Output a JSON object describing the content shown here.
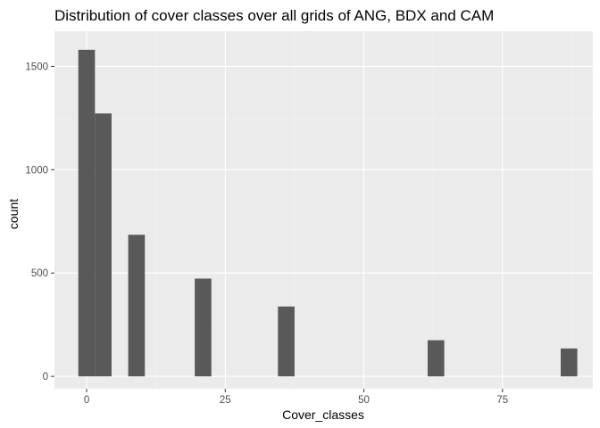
{
  "chart_data": {
    "type": "bar",
    "title": "Distribution of cover classes over all grids of ANG, BDX and CAM",
    "xlabel": "Cover_classes",
    "ylabel": "count",
    "xlim": [
      -5.8,
      91.3
    ],
    "ylim": [
      -60,
      1670
    ],
    "x_ticks": [
      0,
      25,
      50,
      75
    ],
    "x_tick_labels": [
      "0",
      "25",
      "50",
      "75"
    ],
    "y_ticks": [
      0,
      500,
      1000,
      1500
    ],
    "y_tick_labels": [
      "0",
      "500",
      "1000",
      "1500"
    ],
    "bin_width": 3,
    "bins": [
      {
        "x": 0,
        "count": 1580
      },
      {
        "x": 3,
        "count": 1272
      },
      {
        "x": 9,
        "count": 685
      },
      {
        "x": 21,
        "count": 473
      },
      {
        "x": 36,
        "count": 338
      },
      {
        "x": 63,
        "count": 175
      },
      {
        "x": 87,
        "count": 135
      }
    ],
    "grid": true,
    "legend": "none",
    "colors": {
      "panel_background": "#ebebeb",
      "grid_major": "#ffffff",
      "grid_minor": "#f2f2f2",
      "bar_fill": "#595959",
      "tick_color": "#333333"
    }
  }
}
